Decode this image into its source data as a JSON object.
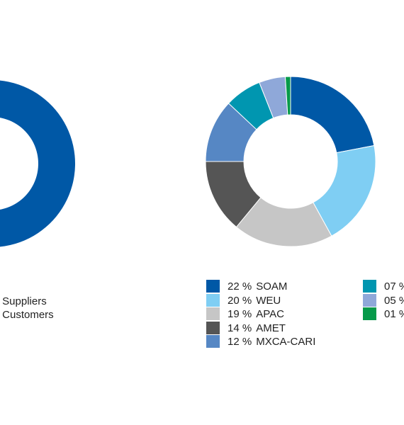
{
  "chart_data": [
    {
      "type": "pie",
      "subtype": "donut",
      "slices": [
        {
          "name": "Suppliers",
          "color": "#0058a6",
          "value": 60
        },
        {
          "name": "Customers",
          "color": "#7fcef3",
          "value": 10
        }
      ],
      "legend": [
        {
          "label": "- Suppliers"
        },
        {
          "label": "- Customers"
        }
      ]
    },
    {
      "type": "pie",
      "subtype": "donut",
      "slices": [
        {
          "pct_label": "22 %",
          "name": "SOAM",
          "value": 22,
          "color": "#0058a6"
        },
        {
          "pct_label": "20 %",
          "name": "WEU",
          "value": 20,
          "color": "#7fcef3"
        },
        {
          "pct_label": "19 %",
          "name": "APAC",
          "value": 19,
          "color": "#c6c6c6"
        },
        {
          "pct_label": "14 %",
          "name": "AMET",
          "value": 14,
          "color": "#555555"
        },
        {
          "pct_label": "12 %",
          "name": "MXCA-CARI",
          "value": 12,
          "color": "#5687c4"
        },
        {
          "pct_label": "07 %",
          "name": "",
          "value": 7,
          "color": "#0096b0"
        },
        {
          "pct_label": "05 %",
          "name": "",
          "value": 5,
          "color": "#8fa8d9"
        },
        {
          "pct_label": "01 %",
          "name": "",
          "value": 1,
          "color": "#069a4a"
        }
      ]
    }
  ]
}
